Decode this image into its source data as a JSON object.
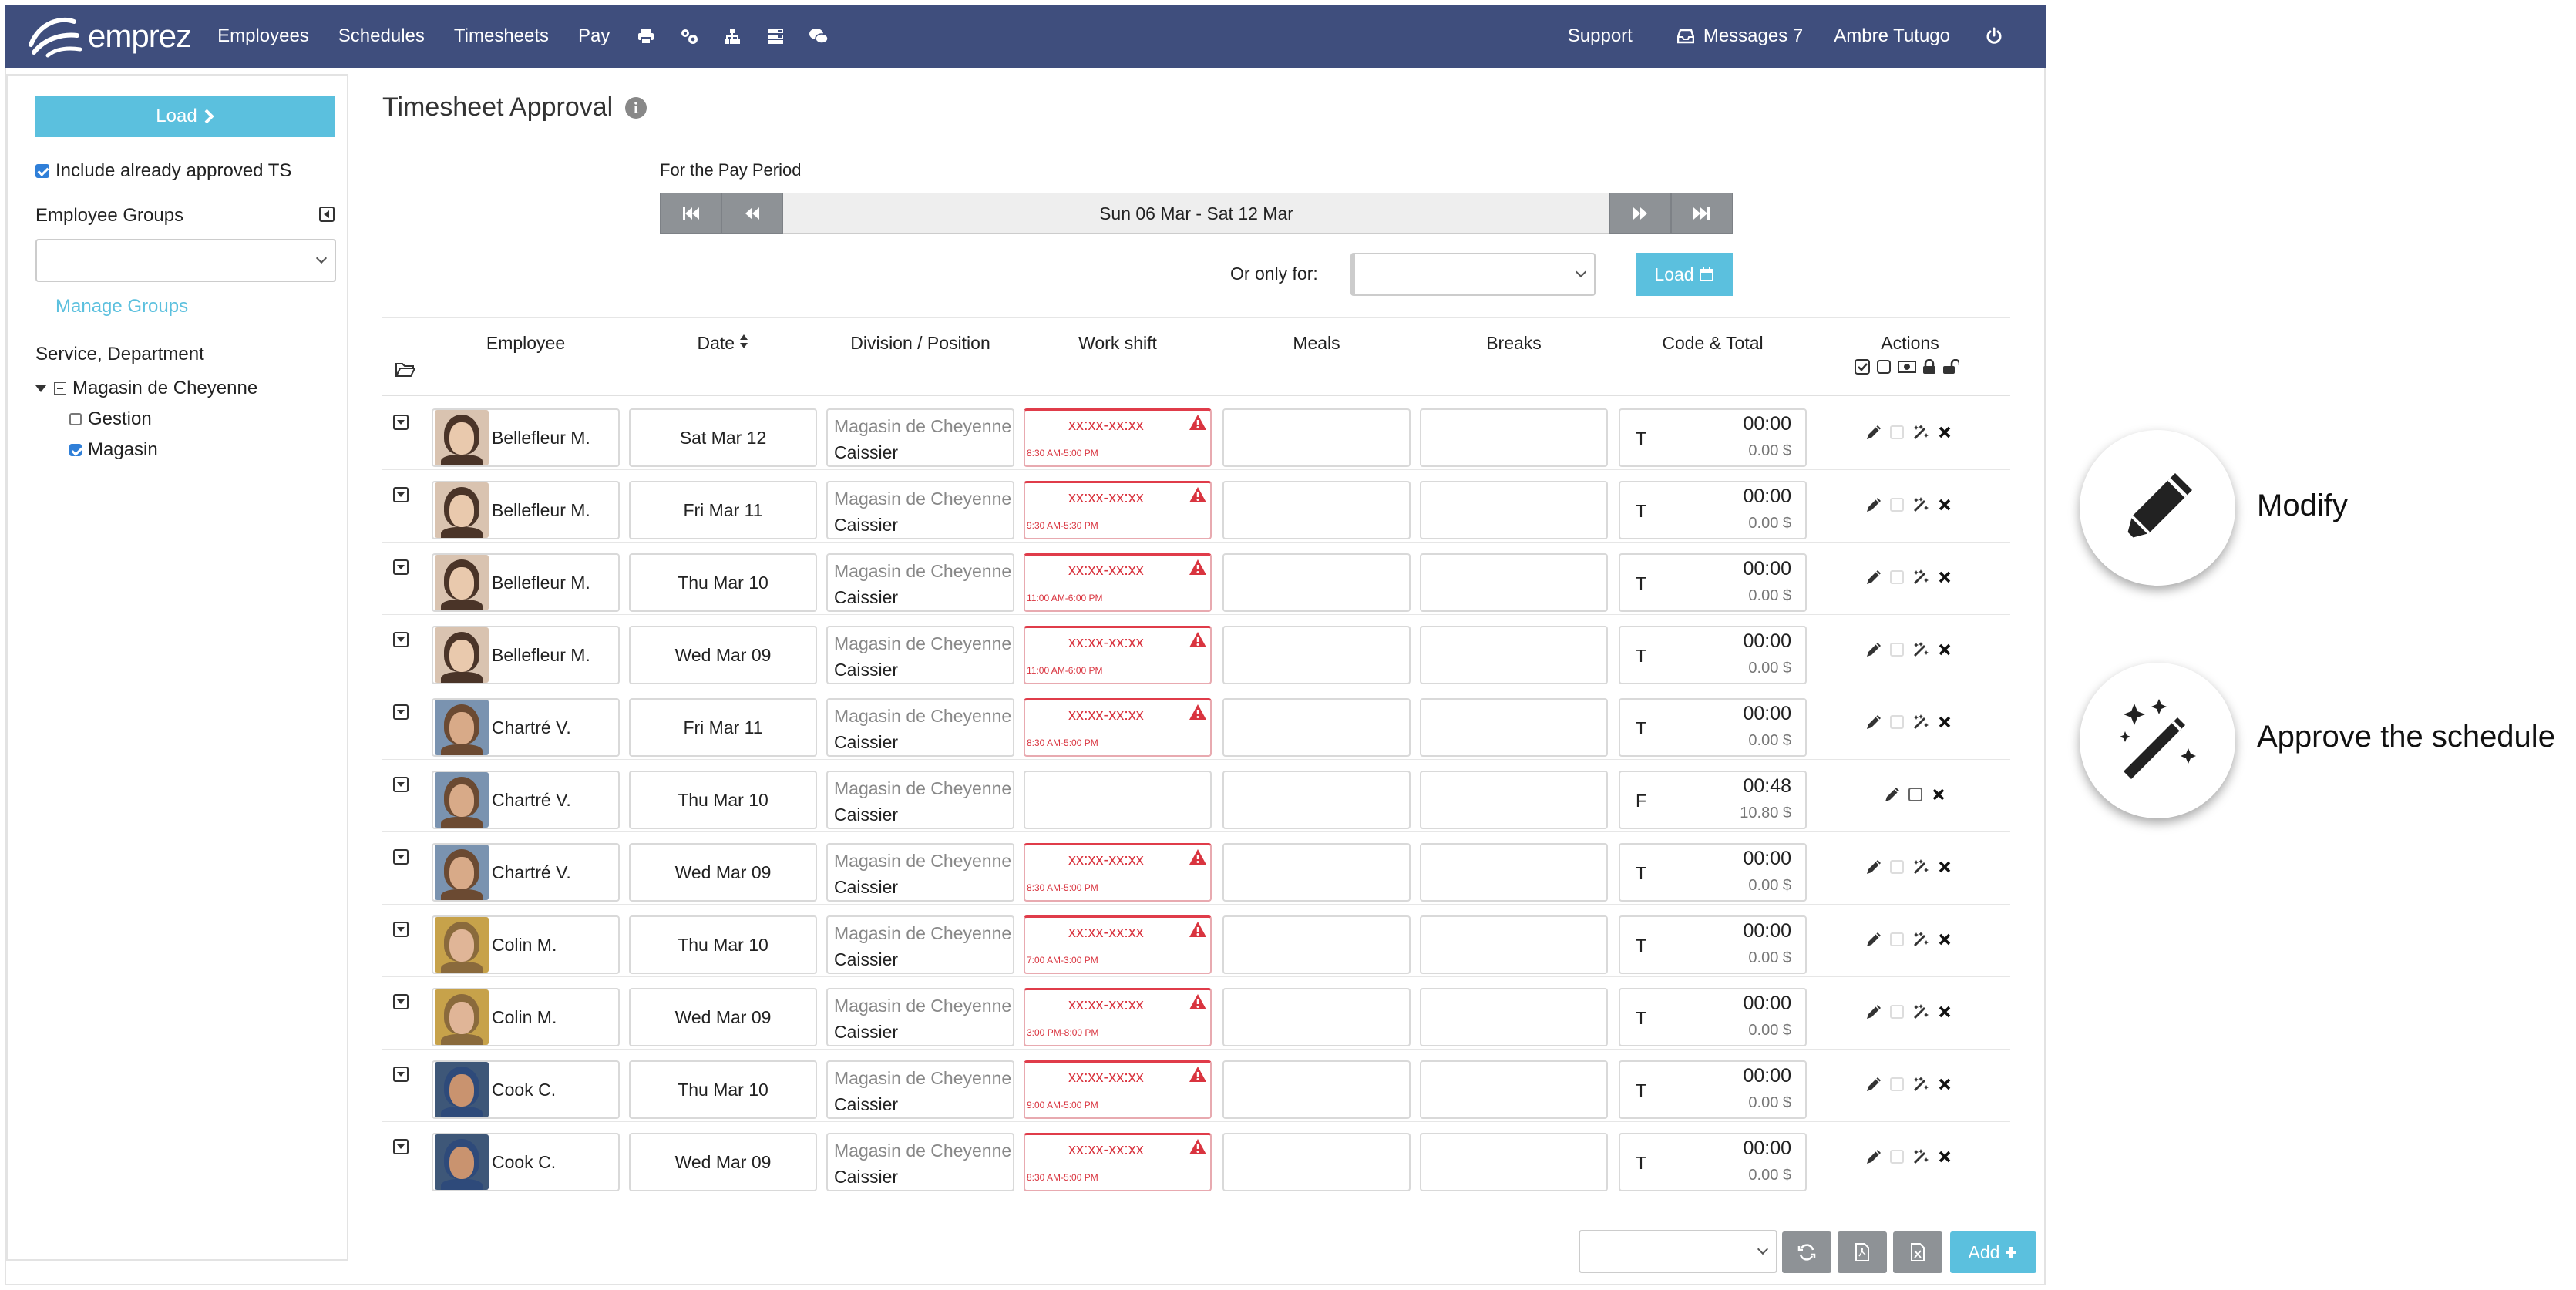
{
  "nav": {
    "brand": "emprez",
    "links": [
      "Employees",
      "Schedules",
      "Timesheets",
      "Pay"
    ],
    "icons": [
      "print-icon",
      "users-cog-icon",
      "org-chart-icon",
      "list-icon",
      "chat-icon"
    ],
    "support": "Support",
    "messages": "Messages 7",
    "user": "Ambre Tutugo"
  },
  "sidebar": {
    "load_label": "Load",
    "include_approved_label": "Include already approved TS",
    "include_approved_checked": true,
    "groups_title": "Employee Groups",
    "groups_select_value": "",
    "manage_groups": "Manage Groups",
    "service_title": "Service, Department",
    "tree": {
      "root": "Magasin de Cheyenne",
      "children": [
        {
          "label": "Gestion",
          "checked": false
        },
        {
          "label": "Magasin",
          "checked": true
        }
      ]
    }
  },
  "main": {
    "title": "Timesheet Approval",
    "pay_period_label": "For the Pay Period",
    "pay_period_range": "Sun 06 Mar - Sat 12 Mar",
    "only_for_label": "Or only for:",
    "only_for_value": "",
    "load_label": "Load"
  },
  "table": {
    "headers": {
      "employee": "Employee",
      "date": "Date",
      "division": "Division / Position",
      "shift": "Work shift",
      "meals": "Meals",
      "breaks": "Breaks",
      "code": "Code & Total",
      "actions": "Actions"
    },
    "rows": [
      {
        "employee": "Bellefleur M.",
        "avatar": "f1",
        "date": "Sat Mar 12",
        "division": "Magasin de Cheyenne",
        "position": "Caissier",
        "shift_main": "xx:xx-xx:xx",
        "shift_sub": "8:30 AM-5:00 PM",
        "warning": true,
        "code": "T",
        "time": "00:00",
        "amount": "0.00 $",
        "wand": true
      },
      {
        "employee": "Bellefleur M.",
        "avatar": "f1",
        "date": "Fri Mar 11",
        "division": "Magasin de Cheyenne",
        "position": "Caissier",
        "shift_main": "xx:xx-xx:xx",
        "shift_sub": "9:30 AM-5:30 PM",
        "warning": true,
        "code": "T",
        "time": "00:00",
        "amount": "0.00 $",
        "wand": true
      },
      {
        "employee": "Bellefleur M.",
        "avatar": "f1",
        "date": "Thu Mar 10",
        "division": "Magasin de Cheyenne",
        "position": "Caissier",
        "shift_main": "xx:xx-xx:xx",
        "shift_sub": "11:00 AM-6:00 PM",
        "warning": true,
        "code": "T",
        "time": "00:00",
        "amount": "0.00 $",
        "wand": true
      },
      {
        "employee": "Bellefleur M.",
        "avatar": "f1",
        "date": "Wed Mar 09",
        "division": "Magasin de Cheyenne",
        "position": "Caissier",
        "shift_main": "xx:xx-xx:xx",
        "shift_sub": "11:00 AM-6:00 PM",
        "warning": true,
        "code": "T",
        "time": "00:00",
        "amount": "0.00 $",
        "wand": true
      },
      {
        "employee": "Chartré V.",
        "avatar": "m1",
        "date": "Fri Mar 11",
        "division": "Magasin de Cheyenne",
        "position": "Caissier",
        "shift_main": "xx:xx-xx:xx",
        "shift_sub": "8:30 AM-5:00 PM",
        "warning": true,
        "code": "T",
        "time": "00:00",
        "amount": "0.00 $",
        "wand": true
      },
      {
        "employee": "Chartré V.",
        "avatar": "m1",
        "date": "Thu Mar 10",
        "division": "Magasin de Cheyenne",
        "position": "Caissier",
        "shift_main": "",
        "shift_sub": "",
        "warning": false,
        "code": "F",
        "time": "00:48",
        "amount": "10.80 $",
        "wand": false
      },
      {
        "employee": "Chartré V.",
        "avatar": "m1",
        "date": "Wed Mar 09",
        "division": "Magasin de Cheyenne",
        "position": "Caissier",
        "shift_main": "xx:xx-xx:xx",
        "shift_sub": "8:30 AM-5:00 PM",
        "warning": true,
        "code": "T",
        "time": "00:00",
        "amount": "0.00 $",
        "wand": true
      },
      {
        "employee": "Colin M.",
        "avatar": "f2",
        "date": "Thu Mar 10",
        "division": "Magasin de Cheyenne",
        "position": "Caissier",
        "shift_main": "xx:xx-xx:xx",
        "shift_sub": "7:00 AM-3:00 PM",
        "warning": true,
        "code": "T",
        "time": "00:00",
        "amount": "0.00 $",
        "wand": true
      },
      {
        "employee": "Colin M.",
        "avatar": "f2",
        "date": "Wed Mar 09",
        "division": "Magasin de Cheyenne",
        "position": "Caissier",
        "shift_main": "xx:xx-xx:xx",
        "shift_sub": "3:00 PM-8:00 PM",
        "warning": true,
        "code": "T",
        "time": "00:00",
        "amount": "0.00 $",
        "wand": true
      },
      {
        "employee": "Cook C.",
        "avatar": "m2",
        "date": "Thu Mar 10",
        "division": "Magasin de Cheyenne",
        "position": "Caissier",
        "shift_main": "xx:xx-xx:xx",
        "shift_sub": "9:00 AM-5:00 PM",
        "warning": true,
        "code": "T",
        "time": "00:00",
        "amount": "0.00 $",
        "wand": true
      },
      {
        "employee": "Cook C.",
        "avatar": "m2",
        "date": "Wed Mar 09",
        "division": "Magasin de Cheyenne",
        "position": "Caissier",
        "shift_main": "xx:xx-xx:xx",
        "shift_sub": "8:30 AM-5:00 PM",
        "warning": true,
        "code": "T",
        "time": "00:00",
        "amount": "0.00 $",
        "wand": true
      }
    ]
  },
  "bottom": {
    "select_value": "",
    "add_label": "Add"
  },
  "legend": {
    "modify": "Modify",
    "approve": "Approve the schedule"
  },
  "colors": {
    "nav_bg": "#3f4e7d",
    "accent": "#5bc0de",
    "warning": "#d9343f",
    "gray_button": "#8e9296"
  }
}
